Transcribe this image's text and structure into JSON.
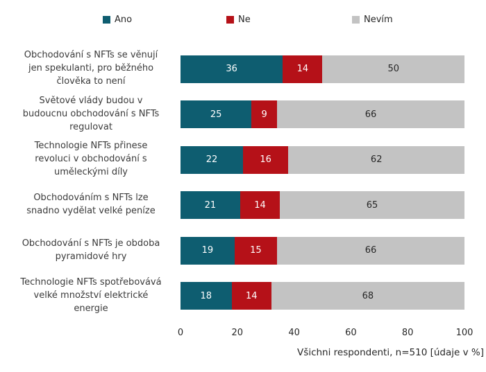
{
  "chart_data": {
    "type": "bar",
    "stacked": true,
    "orientation": "horizontal",
    "title": "",
    "xlabel": "",
    "ylabel": "",
    "xlim": [
      0,
      100
    ],
    "x_ticks": [
      "0",
      "20",
      "40",
      "60",
      "80",
      "100"
    ],
    "grid": false,
    "legend_position": "top",
    "note": "Všichni respondenti, n=510 [údaje v %]",
    "categories": [
      "Obchodování s NFTs se věnují\njen spekulanti, pro běžného\nčlověka to není",
      "Světové vlády budou v\nbudoucnu obchodování s NFTs\nregulovat",
      "Technologie NFTs přinese\nrevoluci v obchodování s\numěleckými díly",
      "Obchodováním s NFTs lze\nsnadno vydělat velké peníze",
      "Obchodování s NFTs je obdoba\npyramidové hry",
      "Technologie NFTs spotřebovává\nvelké množství elektrické\nenergie"
    ],
    "series": [
      {
        "name": "Ano",
        "color": "#0e5d70",
        "text_color": "#ffffff",
        "values": [
          36,
          25,
          22,
          21,
          19,
          18
        ]
      },
      {
        "name": "Ne",
        "color": "#b51118",
        "text_color": "#ffffff",
        "values": [
          14,
          9,
          16,
          14,
          15,
          14
        ]
      },
      {
        "name": "Nevím",
        "color": "#c3c3c3",
        "text_color": "#262626",
        "values": [
          50,
          66,
          62,
          65,
          66,
          68
        ]
      }
    ]
  }
}
